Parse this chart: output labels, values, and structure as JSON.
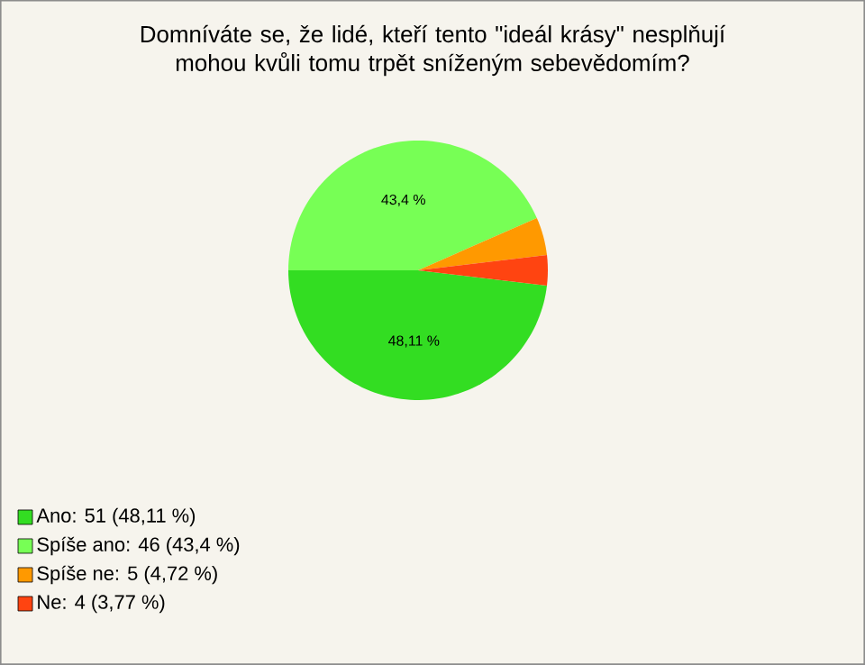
{
  "chart_data": {
    "type": "pie",
    "title": "Domníváte se, že lidé, kteří tento \"ideál krásy\" nesplňují mohou kvůli tomu trpět sníženým sebevědomím?",
    "categories": [
      "Ano: 51 (48,11 %)",
      "Spíše ano: 46 (43,4 %)",
      "Spíše ne: 5 (4,72 %)",
      "Ne: 4 (3,77 %)"
    ],
    "values": [
      48.11,
      43.4,
      4.72,
      3.77
    ],
    "colors": [
      "#33dd22",
      "#77ff55",
      "#ff9900",
      "#ff4411"
    ],
    "value_labels": [
      "48,11 %",
      "43,4 %",
      null,
      null
    ],
    "legend": "bottom left"
  }
}
